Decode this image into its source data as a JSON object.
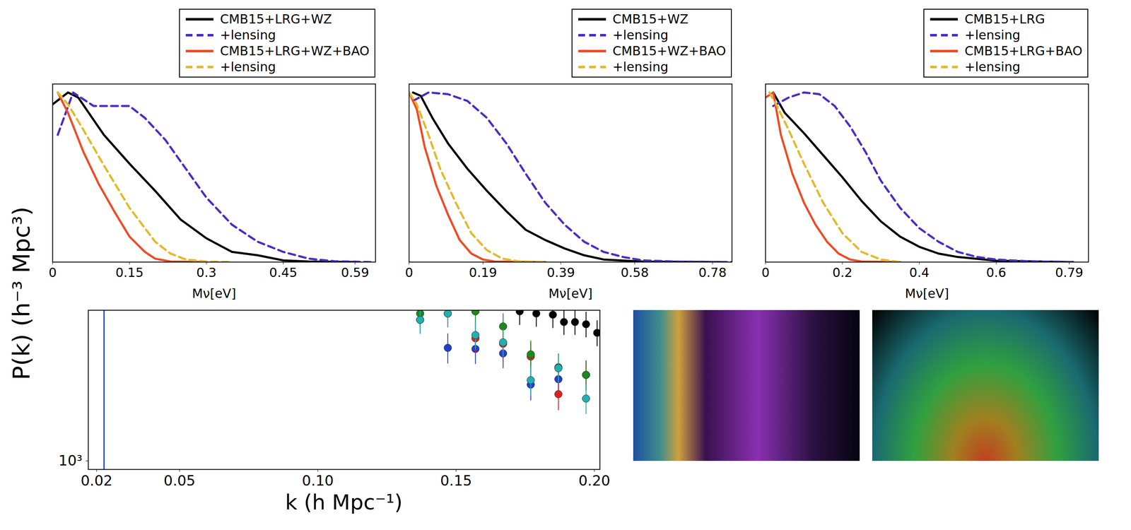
{
  "chart_data": [
    {
      "type": "line",
      "x_label": "Mν[eV]",
      "xlim": [
        0,
        0.63
      ],
      "xticks": [
        0,
        0.15,
        0.3,
        0.45,
        0.59
      ],
      "ylim": [
        0,
        1.05
      ],
      "tick_labels": "x",
      "legend": "top",
      "series": [
        {
          "name": "CMB15+LRG+WZ",
          "color": "#000000",
          "line_style": "solid",
          "x": [
            0,
            0.03,
            0.05,
            0.1,
            0.15,
            0.2,
            0.25,
            0.3,
            0.35,
            0.4,
            0.45,
            0.5,
            0.6
          ],
          "values": [
            0.93,
            1.0,
            0.97,
            0.75,
            0.58,
            0.42,
            0.25,
            0.14,
            0.06,
            0.04,
            0.01,
            0.003,
            0
          ]
        },
        {
          "name": "+lensing",
          "color": "#4b2bc8",
          "line_style": "dashed",
          "x": [
            0.01,
            0.04,
            0.08,
            0.12,
            0.15,
            0.18,
            0.22,
            0.26,
            0.3,
            0.35,
            0.4,
            0.45,
            0.5,
            0.55,
            0.62
          ],
          "values": [
            0.75,
            1.0,
            0.92,
            0.92,
            0.92,
            0.85,
            0.72,
            0.55,
            0.38,
            0.22,
            0.12,
            0.06,
            0.02,
            0.005,
            0
          ]
        },
        {
          "name": "CMB15+LRG+WZ+BAO",
          "color": "#f04a24",
          "line_style": "solid",
          "x": [
            0.01,
            0.03,
            0.06,
            0.09,
            0.12,
            0.15,
            0.18,
            0.2,
            0.23,
            0.3
          ],
          "values": [
            1.0,
            0.88,
            0.65,
            0.46,
            0.3,
            0.15,
            0.06,
            0.02,
            0.003,
            0
          ]
        },
        {
          "name": "+lensing",
          "color": "#e3b92a",
          "line_style": "dashed",
          "x": [
            0.01,
            0.03,
            0.06,
            0.1,
            0.15,
            0.2,
            0.23,
            0.26,
            0.3,
            0.35
          ],
          "values": [
            1.0,
            0.93,
            0.78,
            0.57,
            0.32,
            0.12,
            0.05,
            0.015,
            0.003,
            0
          ]
        }
      ]
    },
    {
      "type": "line",
      "x_label": "Mν[eV]",
      "xlim": [
        0,
        0.83
      ],
      "xticks": [
        0,
        0.19,
        0.39,
        0.58,
        0.78
      ],
      "ylim": [
        0,
        1.05
      ],
      "tick_labels": "x",
      "legend": "top",
      "series": [
        {
          "name": "CMB15+WZ",
          "color": "#000000",
          "line_style": "solid",
          "x": [
            0.01,
            0.03,
            0.06,
            0.1,
            0.15,
            0.2,
            0.25,
            0.3,
            0.35,
            0.4,
            0.45,
            0.5,
            0.6,
            0.8
          ],
          "values": [
            1.0,
            0.98,
            0.85,
            0.7,
            0.55,
            0.42,
            0.3,
            0.19,
            0.13,
            0.08,
            0.04,
            0.015,
            0.003,
            0
          ]
        },
        {
          "name": "+lensing",
          "color": "#4b2bc8",
          "line_style": "dashed",
          "x": [
            0.01,
            0.05,
            0.1,
            0.15,
            0.2,
            0.25,
            0.3,
            0.35,
            0.4,
            0.45,
            0.5,
            0.55,
            0.6,
            0.7,
            0.83
          ],
          "values": [
            0.95,
            1.0,
            0.99,
            0.95,
            0.85,
            0.7,
            0.52,
            0.35,
            0.22,
            0.12,
            0.06,
            0.03,
            0.01,
            0.002,
            0
          ]
        },
        {
          "name": "CMB15+WZ+BAO",
          "color": "#f04a24",
          "line_style": "solid",
          "x": [
            0,
            0.02,
            0.04,
            0.07,
            0.1,
            0.13,
            0.16,
            0.19,
            0.22,
            0.35
          ],
          "values": [
            1.0,
            0.9,
            0.68,
            0.45,
            0.28,
            0.13,
            0.05,
            0.015,
            0.003,
            0
          ]
        },
        {
          "name": "+lensing",
          "color": "#e3b92a",
          "line_style": "dashed",
          "x": [
            0,
            0.02,
            0.05,
            0.08,
            0.12,
            0.16,
            0.2,
            0.24,
            0.28,
            0.35
          ],
          "values": [
            1.0,
            0.93,
            0.75,
            0.55,
            0.35,
            0.17,
            0.07,
            0.02,
            0.005,
            0
          ]
        }
      ]
    },
    {
      "type": "line",
      "x_label": "Mν[eV]",
      "xlim": [
        0,
        0.84
      ],
      "xticks": [
        0,
        0.2,
        0.4,
        0.6,
        0.79
      ],
      "ylim": [
        0,
        1.05
      ],
      "tick_labels": "x",
      "legend": "top",
      "series": [
        {
          "name": "CMB15+LRG",
          "color": "#000000",
          "line_style": "solid",
          "x": [
            0.02,
            0.05,
            0.1,
            0.15,
            0.2,
            0.25,
            0.3,
            0.35,
            0.4,
            0.45,
            0.5,
            0.6,
            0.7,
            0.8
          ],
          "values": [
            1.0,
            0.88,
            0.76,
            0.63,
            0.5,
            0.36,
            0.24,
            0.15,
            0.09,
            0.05,
            0.03,
            0.008,
            0.004,
            0
          ]
        },
        {
          "name": "+lensing",
          "color": "#4b2bc8",
          "line_style": "dashed",
          "x": [
            0.02,
            0.06,
            0.1,
            0.14,
            0.18,
            0.22,
            0.26,
            0.3,
            0.35,
            0.4,
            0.45,
            0.5,
            0.55,
            0.6,
            0.7,
            0.8
          ],
          "values": [
            0.92,
            0.97,
            1.0,
            0.99,
            0.92,
            0.8,
            0.65,
            0.48,
            0.32,
            0.2,
            0.12,
            0.06,
            0.03,
            0.015,
            0.003,
            0
          ]
        },
        {
          "name": "CMB15+LRG+BAO",
          "color": "#f04a24",
          "line_style": "solid",
          "x": [
            0,
            0.02,
            0.04,
            0.07,
            0.1,
            0.13,
            0.16,
            0.19,
            0.22,
            0.25,
            0.35
          ],
          "values": [
            0.97,
            1.0,
            0.75,
            0.52,
            0.35,
            0.22,
            0.12,
            0.05,
            0.015,
            0.003,
            0
          ]
        },
        {
          "name": "+lensing",
          "color": "#e3b92a",
          "line_style": "dashed",
          "x": [
            0.01,
            0.03,
            0.06,
            0.1,
            0.15,
            0.2,
            0.25,
            0.3,
            0.35
          ],
          "values": [
            1.0,
            0.92,
            0.78,
            0.58,
            0.35,
            0.17,
            0.06,
            0.015,
            0
          ]
        }
      ]
    },
    {
      "type": "scatter",
      "x_label": "k (h Mpc⁻¹)",
      "y_label": "P(k) (h⁻³ Mpc³)",
      "log": "y",
      "xlim": [
        0.017,
        0.202
      ],
      "xticks": [
        0.02,
        0.05,
        {
          "value": 0.1,
          "label": "0.10"
        },
        0.15,
        {
          "value": 0.2,
          "label": "0.20"
        }
      ],
      "ylim": [
        942,
        2857
      ],
      "yticks": [
        {
          "value": 1000,
          "label": "10³"
        }
      ],
      "vertical_line": {
        "x": 0.0227,
        "color": "#1f3fd0"
      },
      "series": [
        {
          "color": "#1f3fd0",
          "marker": "circle",
          "x": [
            0.137,
            0.147,
            0.157,
            0.167,
            0.177,
            0.187
          ],
          "values": [
            2672,
            2198,
            2182,
            2115,
            1702,
            1767
          ],
          "errors": [
            250,
            230,
            220,
            210,
            180,
            190
          ]
        },
        {
          "color": "#e02020",
          "marker": "circle",
          "x": [
            0.147,
            0.157,
            0.167,
            0.177,
            0.187,
            0.197
          ],
          "values": [
            2793,
            2350,
            2262,
            2069,
            1592,
            1821
          ],
          "errors": [
            260,
            240,
            230,
            210,
            170,
            190
          ]
        },
        {
          "color": "#1a8a1a",
          "marker": "circle",
          "x": [
            0.137,
            0.157,
            0.167,
            0.177,
            0.187,
            0.197
          ],
          "values": [
            2793,
            2835,
            2552,
            2101,
            1920,
            1821
          ],
          "errors": [
            260,
            260,
            240,
            210,
            190,
            190
          ]
        },
        {
          "color": "#20b0b0",
          "marker": "circle",
          "x": [
            0.137,
            0.147,
            0.157,
            0.167,
            0.177,
            0.187,
            0.197
          ],
          "values": [
            2672,
            2793,
            2403,
            2284,
            1755,
            1908,
            1544
          ],
          "errors": [
            250,
            260,
            230,
            220,
            180,
            190,
            160
          ]
        },
        {
          "color": "#000000",
          "marker": "circle",
          "x": [
            0.173,
            0.179,
            0.185,
            0.189,
            0.193,
            0.197,
            0.201
          ],
          "values": [
            2835,
            2793,
            2769,
            2632,
            2632,
            2592,
            2441
          ],
          "errors": [
            260,
            250,
            250,
            230,
            230,
            230,
            220
          ]
        }
      ]
    }
  ]
}
